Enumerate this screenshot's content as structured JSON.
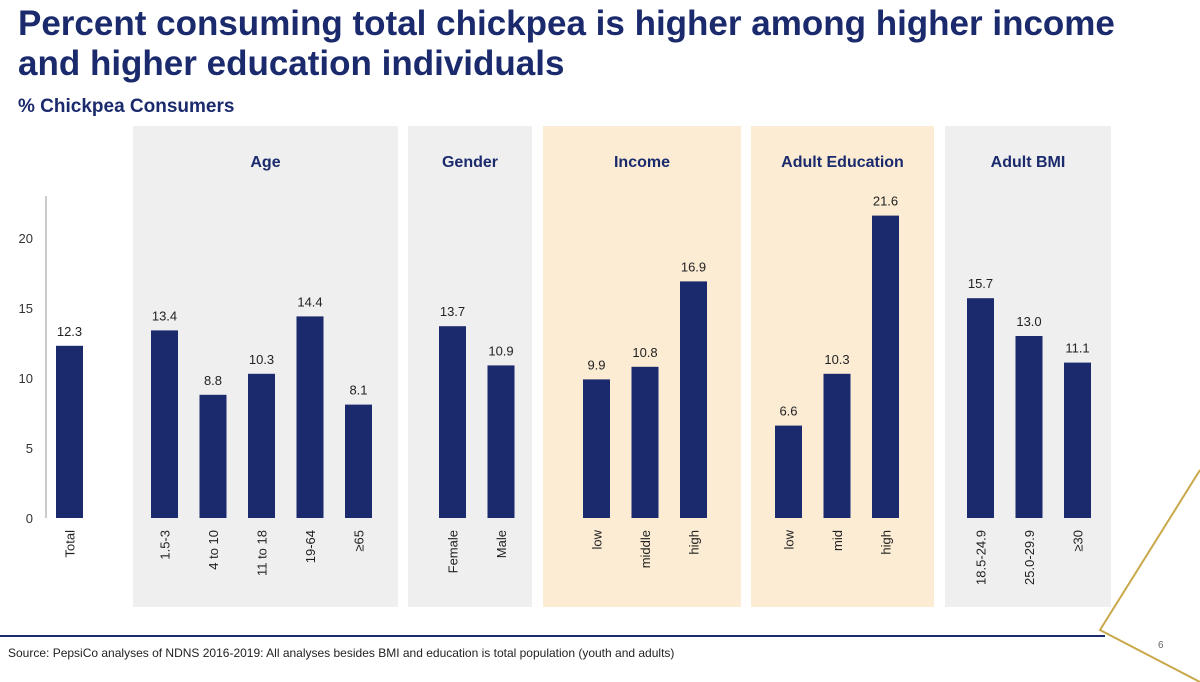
{
  "title": "Percent consuming total chickpea is higher among higher income and higher education individuals",
  "subtitle": "% Chickpea Consumers",
  "source": "Source: PepsiCo analyses of NDNS 2016-2019: All analyses besides BMI and education is total population (youth and adults)",
  "page_number": "6",
  "colors": {
    "bar": "#1a2a6c",
    "panel_gray": "#efefef",
    "panel_tan": "#fbecd3",
    "accent_gold": "#c9a84a"
  },
  "chart_data": {
    "type": "bar",
    "ylim": [
      0,
      22
    ],
    "yticks": [
      0,
      5,
      10,
      15,
      20
    ],
    "groups": [
      {
        "name": "",
        "highlight": false,
        "categories": [
          "Total"
        ],
        "values": [
          12.3
        ]
      },
      {
        "name": "Age",
        "highlight": false,
        "categories": [
          "1.5-3",
          "4 to 10",
          "11 to 18",
          "19-64",
          "≥65"
        ],
        "values": [
          13.4,
          8.8,
          10.3,
          14.4,
          8.1
        ]
      },
      {
        "name": "Gender",
        "highlight": false,
        "categories": [
          "Female",
          "Male"
        ],
        "values": [
          13.7,
          10.9
        ]
      },
      {
        "name": "Income",
        "highlight": true,
        "categories": [
          "low",
          "middle",
          "high"
        ],
        "values": [
          9.9,
          10.8,
          16.9
        ]
      },
      {
        "name": "Adult Education",
        "highlight": true,
        "categories": [
          "low",
          "mid",
          "high"
        ],
        "values": [
          6.6,
          10.3,
          21.6
        ]
      },
      {
        "name": "Adult BMI",
        "highlight": false,
        "categories": [
          "18.5-24.9",
          "25.0-29.9",
          "≥30"
        ],
        "values": [
          15.7,
          13.0,
          11.1
        ]
      }
    ]
  }
}
